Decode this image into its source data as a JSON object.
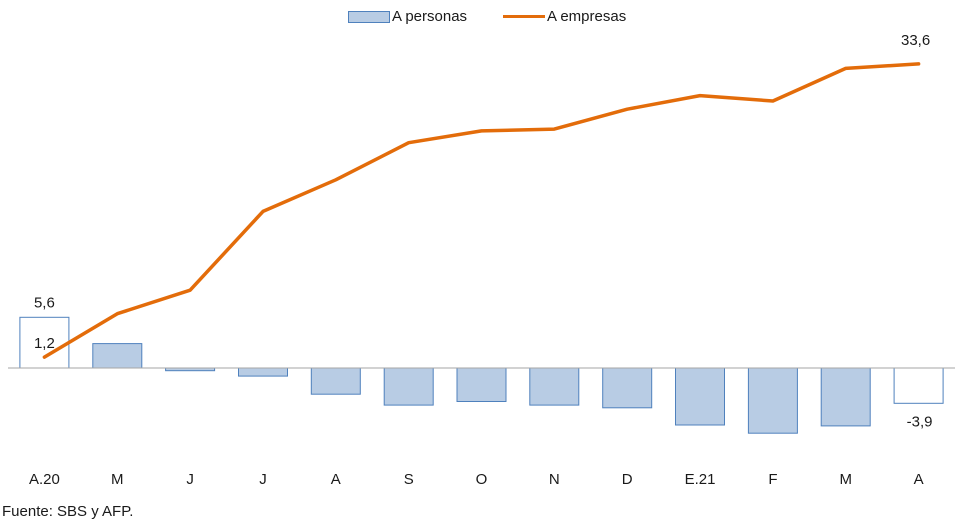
{
  "legend": {
    "personas": "A personas",
    "empresas": "A empresas"
  },
  "source": "Fuente: SBS y AFP.",
  "colors": {
    "bar_fill": "#b8cce4",
    "bar_stroke": "#4f81bd",
    "highlight_fill": "#ffffff",
    "line": "#e36c0a"
  },
  "chart_data": {
    "type": "bar",
    "categories": [
      "A.20",
      "M",
      "J",
      "J",
      "A",
      "S",
      "O",
      "N",
      "D",
      "E.21",
      "F",
      "M",
      "A"
    ],
    "series": [
      {
        "name": "A personas",
        "type": "bar",
        "values": [
          5.6,
          2.7,
          -0.3,
          -0.9,
          -2.9,
          -4.1,
          -3.7,
          -4.1,
          -4.4,
          -6.3,
          -7.2,
          -6.4,
          -3.9
        ]
      },
      {
        "name": "A empresas",
        "type": "line",
        "values": [
          1.2,
          6.0,
          8.6,
          17.3,
          20.8,
          24.9,
          26.2,
          26.4,
          28.6,
          30.1,
          29.5,
          33.1,
          33.6
        ]
      }
    ],
    "data_labels": [
      {
        "series": 0,
        "index": 0,
        "text": "5,6"
      },
      {
        "series": 1,
        "index": 0,
        "text": "1,2"
      },
      {
        "series": 1,
        "index": 12,
        "text": "33,6"
      },
      {
        "series": 0,
        "index": 12,
        "text": "-3,9"
      }
    ],
    "highlighted_bars": [
      0,
      12
    ],
    "xlabel": "",
    "ylabel": "",
    "ylim": [
      -8,
      36
    ],
    "grid": false,
    "legend_position": "top-center"
  }
}
